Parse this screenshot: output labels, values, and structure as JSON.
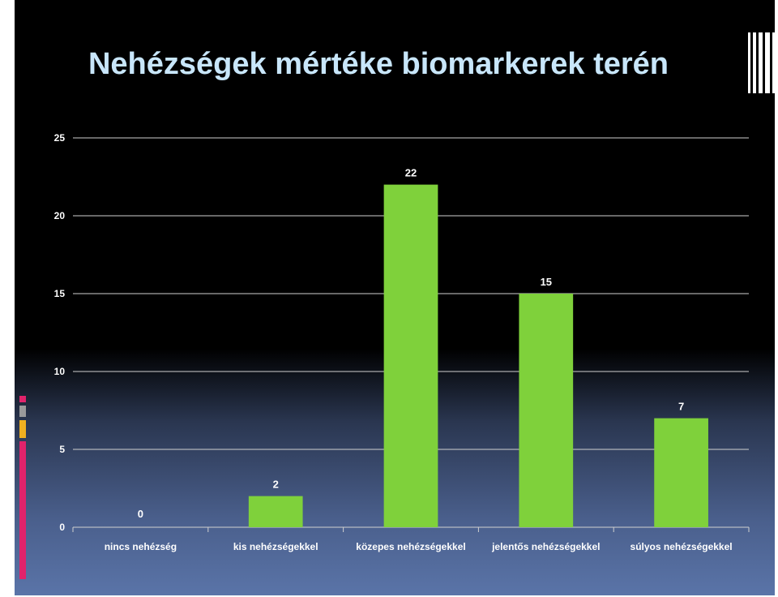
{
  "slide": {
    "title": "Nehézségek mértéke biomarkerek terén"
  },
  "colors": {
    "bar": "#7fd13b",
    "grid": "#d0d0d0",
    "title": "#c8e6fa"
  },
  "chart_data": {
    "type": "bar",
    "categories": [
      "nincs nehézség",
      "kis nehézségekkel",
      "közepes nehézségekkel",
      "jelentős nehézségekkel",
      "súlyos nehézségekkel"
    ],
    "values": [
      0,
      2,
      22,
      15,
      7
    ],
    "data_labels": [
      "0",
      "2",
      "22",
      "15",
      "7"
    ],
    "ylim": [
      0,
      25
    ],
    "yticks": [
      0,
      5,
      10,
      15,
      20,
      25
    ],
    "ytick_labels": [
      "0",
      "5",
      "10",
      "15",
      "20",
      "25"
    ],
    "grid": true,
    "legend": "none"
  }
}
